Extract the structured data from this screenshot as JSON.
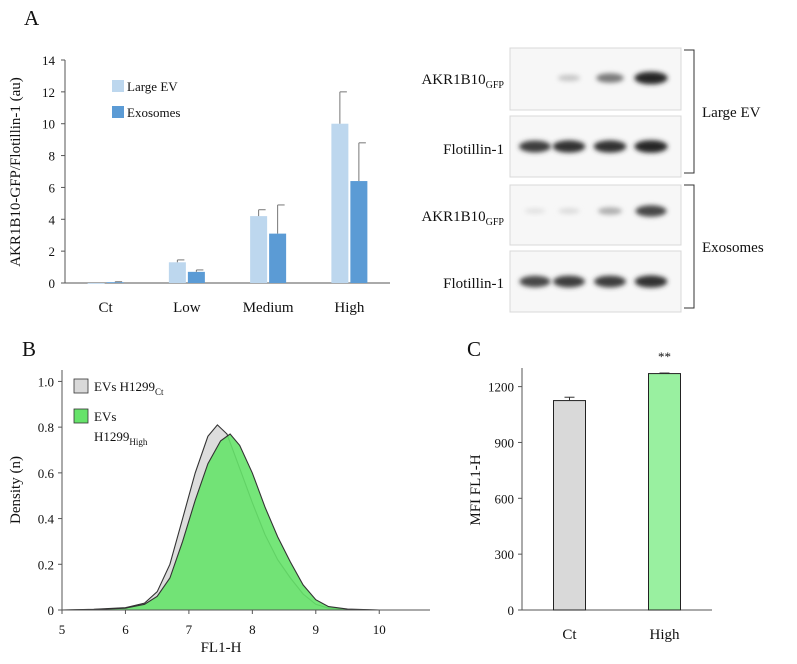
{
  "panels": {
    "a": "A",
    "b": "B",
    "c": "C"
  },
  "chart_data": [
    {
      "type": "bar",
      "panel": "A",
      "title": "",
      "xlabel": "",
      "ylabel": "AKR1B10-GFP/Flotillin-1 (au)",
      "ylim": [
        0,
        14
      ],
      "yticks": [
        "0",
        "2",
        "4",
        "6",
        "8",
        "10",
        "12",
        "14"
      ],
      "categories": [
        "Ct",
        "Low",
        "Medium",
        "High"
      ],
      "series": [
        {
          "name": "Large EV",
          "color": "#bdd7ee",
          "values": [
            0.0,
            1.3,
            4.2,
            10.0
          ],
          "errors": [
            0.0,
            0.15,
            0.4,
            2.0
          ]
        },
        {
          "name": "Exosomes",
          "color": "#5b9bd5",
          "values": [
            0.05,
            0.7,
            3.1,
            6.4
          ],
          "errors": [
            0.03,
            0.12,
            1.8,
            2.4
          ]
        }
      ],
      "legend": "top-left",
      "grid": false
    },
    {
      "type": "area",
      "panel": "B",
      "title": "",
      "xlabel": "FL1-H",
      "ylabel": "Density (n)",
      "xlim": [
        5,
        10.8
      ],
      "ylim": [
        0,
        1.05
      ],
      "xticks": [
        "5",
        "6",
        "7",
        "8",
        "9",
        "10"
      ],
      "yticks": [
        "0",
        "0.2",
        "0.4",
        "0.6",
        "0.8",
        "1.0"
      ],
      "series": [
        {
          "name_main": "EVs H1299",
          "name_sub": "Ct",
          "color": "#d9d9d9",
          "x": [
            5.0,
            5.5,
            6.0,
            6.3,
            6.5,
            6.7,
            6.9,
            7.1,
            7.3,
            7.45,
            7.6,
            7.8,
            8.0,
            8.2,
            8.4,
            8.6,
            8.8,
            9.0,
            9.2,
            9.5,
            10.0
          ],
          "y": [
            0.0,
            0.003,
            0.01,
            0.03,
            0.08,
            0.2,
            0.4,
            0.6,
            0.76,
            0.81,
            0.77,
            0.62,
            0.47,
            0.33,
            0.22,
            0.14,
            0.07,
            0.025,
            0.008,
            0.002,
            0.0
          ]
        },
        {
          "name_main": "EVs",
          "name_line2": "H1299",
          "name_sub": "High",
          "color": "#66e36a",
          "x": [
            5.0,
            5.5,
            6.0,
            6.3,
            6.5,
            6.7,
            6.9,
            7.1,
            7.3,
            7.5,
            7.65,
            7.8,
            8.0,
            8.2,
            8.4,
            8.6,
            8.8,
            9.0,
            9.2,
            9.5,
            10.0
          ],
          "y": [
            0.0,
            0.002,
            0.008,
            0.025,
            0.06,
            0.14,
            0.3,
            0.48,
            0.64,
            0.74,
            0.77,
            0.72,
            0.6,
            0.45,
            0.32,
            0.21,
            0.11,
            0.045,
            0.015,
            0.004,
            0.0
          ]
        }
      ],
      "legend": "top-left",
      "grid": false
    },
    {
      "type": "bar",
      "panel": "C",
      "title": "",
      "xlabel": "",
      "ylabel": "MFI FL1-H",
      "ylim": [
        0,
        1300
      ],
      "yticks": [
        "0",
        "300",
        "600",
        "900",
        "1200"
      ],
      "categories": [
        "Ct",
        "High"
      ],
      "values": [
        1125,
        1270
      ],
      "errors": [
        18,
        3
      ],
      "colors": [
        "#d9d9d9",
        "#99f0a0"
      ],
      "annotations": [
        "",
        "**"
      ],
      "grid": false
    }
  ],
  "blots": {
    "rows": [
      {
        "label_main": "AKR1B10",
        "label_sub": "GFP",
        "intensities": [
          0.0,
          0.18,
          0.55,
          0.95
        ]
      },
      {
        "label_main": "Flotillin-1",
        "label_sub": "",
        "intensities": [
          0.85,
          0.9,
          0.9,
          0.95
        ]
      },
      {
        "label_main": "AKR1B10",
        "label_sub": "GFP",
        "intensities": [
          0.05,
          0.08,
          0.3,
          0.8
        ]
      },
      {
        "label_main": "Flotillin-1",
        "label_sub": "",
        "intensities": [
          0.8,
          0.85,
          0.85,
          0.9
        ]
      }
    ],
    "groups": [
      "Large EV",
      "Exosomes"
    ]
  }
}
